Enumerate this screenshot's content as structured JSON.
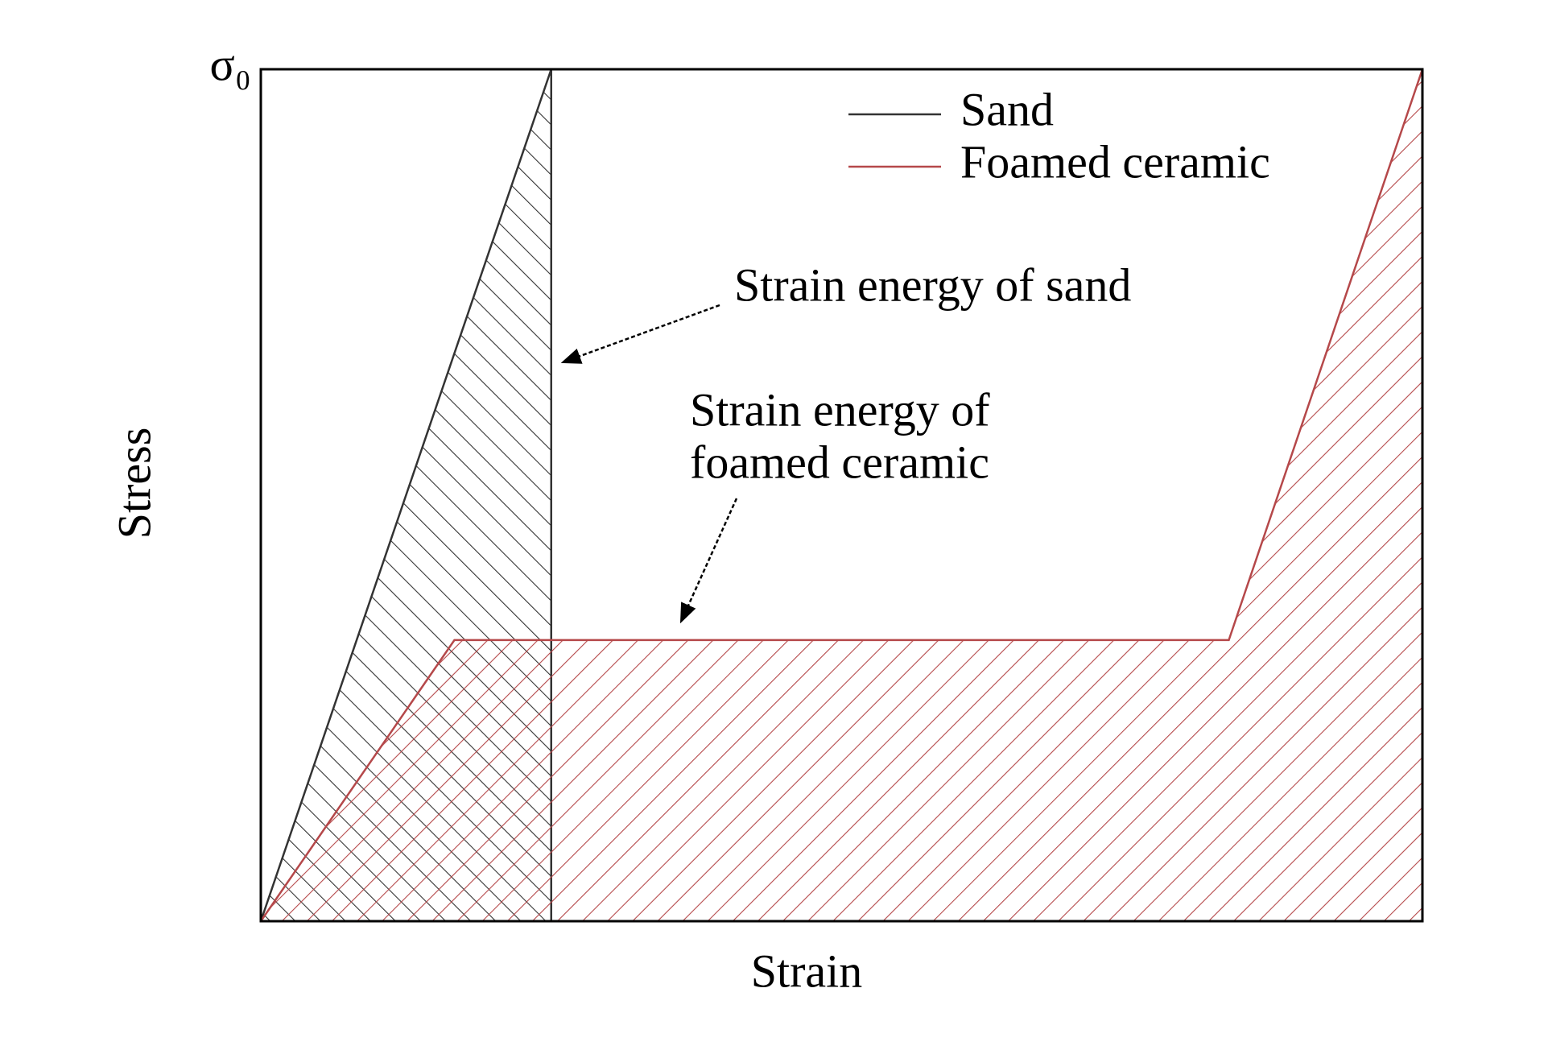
{
  "chart_data": {
    "type": "line",
    "x_label": "Strain",
    "y_label": "Stress",
    "xlim": [
      0,
      12
    ],
    "ylim": [
      0,
      1
    ],
    "yticks": [
      {
        "value": 1,
        "label": "σ₀"
      }
    ],
    "legend": "upper right",
    "fill_hatch": true,
    "series": [
      {
        "name": "Sand",
        "color": "#333333",
        "x": [
          0,
          3,
          3
        ],
        "values": [
          0,
          1,
          0
        ]
      },
      {
        "name": "Foamed ceramic",
        "color": "#b5484a",
        "x": [
          0,
          2,
          10,
          12,
          12
        ],
        "values": [
          0,
          0.33,
          0.33,
          1,
          0
        ]
      }
    ],
    "annotations": [
      {
        "lines": [
          "Strain energy of sand"
        ]
      },
      {
        "lines": [
          "Strain energy of",
          "foamed ceramic"
        ]
      }
    ]
  }
}
